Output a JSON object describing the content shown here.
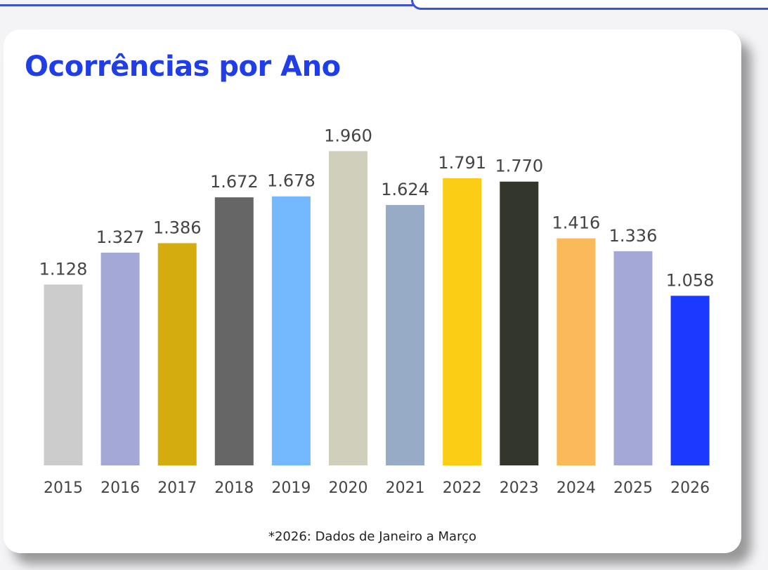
{
  "page": {
    "background": "#f4f4f6"
  },
  "header": {
    "rule_color": "#3c53d8"
  },
  "card": {
    "title": "Ocorrências por Ano",
    "title_color": "#1f3de8",
    "footnote": "*2026: Dados de Janeiro a Março"
  },
  "chart_data": {
    "type": "bar",
    "title": "Ocorrências por Ano",
    "xlabel": "",
    "ylabel": "",
    "ylim": [
      0,
      2000
    ],
    "grid": false,
    "legend": "none",
    "categories": [
      "2015",
      "2016",
      "2017",
      "2018",
      "2019",
      "2020",
      "2021",
      "2022",
      "2023",
      "2024",
      "2025",
      "2026"
    ],
    "values": [
      1128,
      1327,
      1386,
      1672,
      1678,
      1960,
      1624,
      1791,
      1770,
      1416,
      1336,
      1058
    ],
    "value_labels": [
      "1.128",
      "1.327",
      "1.386",
      "1.672",
      "1.678",
      "1.960",
      "1.624",
      "1.791",
      "1.770",
      "1.416",
      "1.336",
      "1.058"
    ],
    "colors": [
      "#cccccc",
      "#a3a8d6",
      "#d4ac0d",
      "#666666",
      "#74b9fd",
      "#cfcfbc",
      "#97abc6",
      "#fbcd14",
      "#33362a",
      "#fbba5a",
      "#a3a8d6",
      "#1a3bff"
    ]
  }
}
